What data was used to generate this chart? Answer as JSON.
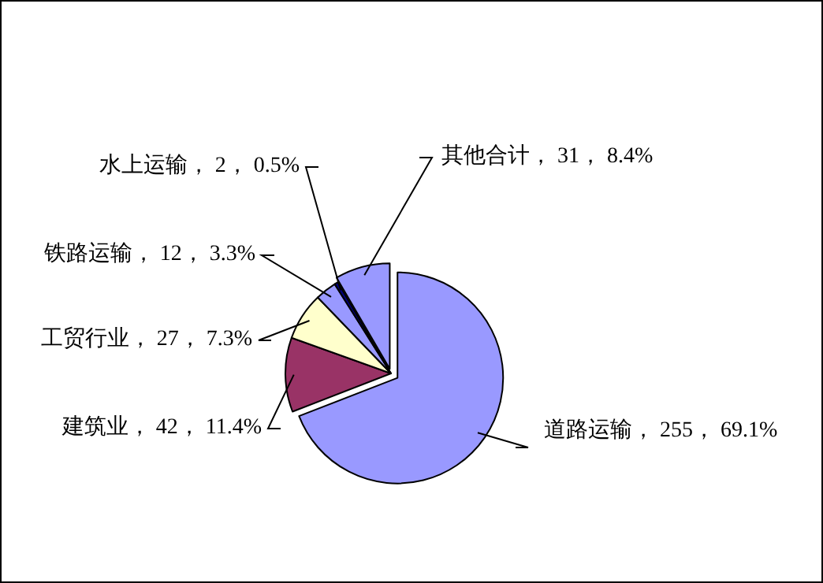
{
  "chart_data": {
    "type": "pie",
    "categories": [
      "道路运输",
      "建筑业",
      "工贸行业",
      "铁路运输",
      "水上运输",
      "其他合计"
    ],
    "values": [
      255,
      42,
      27,
      12,
      2,
      31
    ],
    "value_labels": [
      "255， 69.1%",
      "42， 11.4%",
      "27， 7.3%",
      "12， 3.3%",
      "2， 0.5%",
      "31， 8.4%"
    ],
    "colors": [
      "#9999ff",
      "#993366",
      "#ffffcc",
      "#9999ff",
      "#000080",
      "#9999ff"
    ],
    "legend": false
  }
}
